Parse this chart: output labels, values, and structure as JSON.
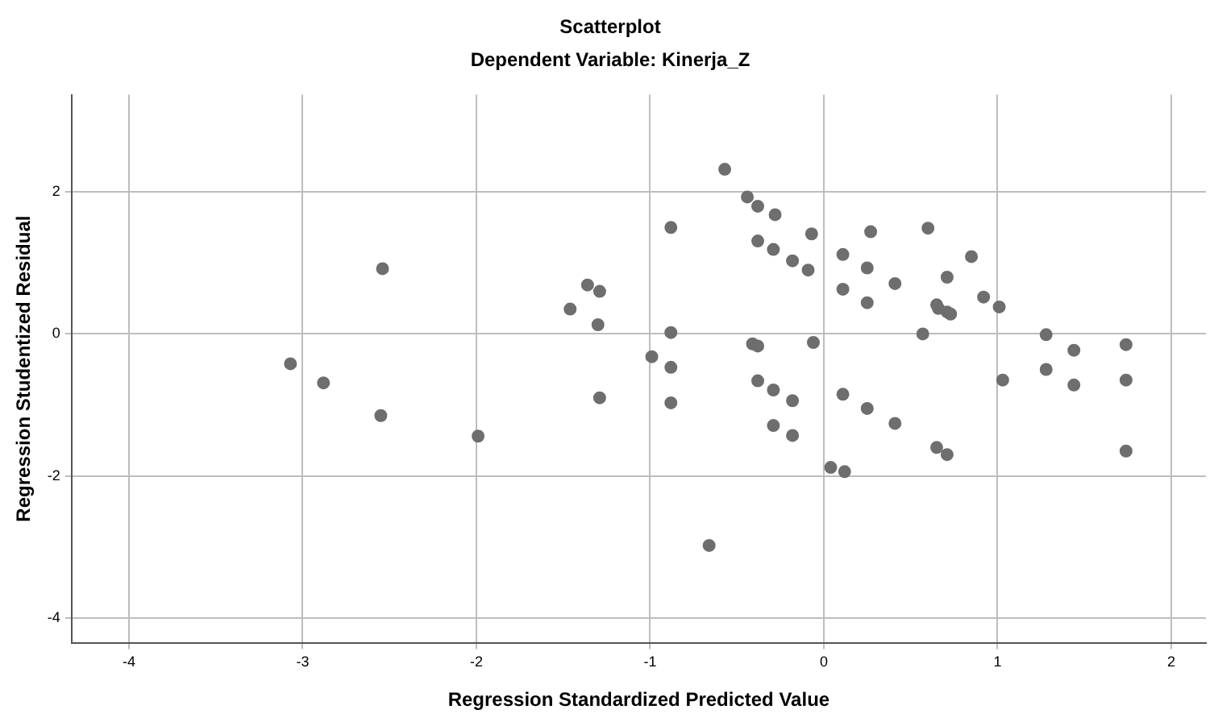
{
  "chart_data": {
    "type": "scatter",
    "title": "Scatterplot",
    "subtitle": "Dependent Variable: Kinerja_Z",
    "xlabel": "Regression Standardized Predicted Value",
    "ylabel": "Regression Studentized Residual",
    "x": [
      -3.07,
      -2.88,
      -2.54,
      -2.55,
      -1.99,
      -1.46,
      -1.36,
      -1.29,
      -1.3,
      -1.29,
      -0.57,
      -0.44,
      -0.38,
      -0.28,
      -0.88,
      -0.07,
      0.27,
      0.6,
      -0.38,
      -0.29,
      -0.18,
      -0.09,
      0.11,
      0.25,
      0.85,
      0.11,
      0.41,
      0.71,
      0.25,
      0.65,
      0.66,
      0.71,
      0.73,
      0.92,
      1.01,
      -0.88,
      0.57,
      1.28,
      -0.41,
      -0.38,
      -0.06,
      -0.99,
      -0.88,
      -0.88,
      1.44,
      1.74,
      1.28,
      1.44,
      1.03,
      1.74,
      1.74,
      -0.38,
      -0.29,
      -0.18,
      0.11,
      0.25,
      0.41,
      -0.29,
      -0.18,
      0.65,
      0.71,
      0.04,
      0.12,
      -0.66
    ],
    "series": [
      {
        "color": "#6e6e6e",
        "values": [
          -0.42,
          -0.69,
          0.92,
          -1.15,
          -1.44,
          0.35,
          0.69,
          0.6,
          0.13,
          -0.9,
          2.32,
          1.93,
          1.8,
          1.68,
          1.5,
          1.41,
          1.44,
          1.49,
          1.31,
          1.19,
          1.03,
          0.9,
          1.12,
          0.93,
          1.09,
          0.63,
          0.71,
          0.8,
          0.44,
          0.41,
          0.36,
          0.31,
          0.28,
          0.52,
          0.38,
          0.02,
          0.0,
          -0.01,
          -0.14,
          -0.17,
          -0.12,
          -0.32,
          -0.47,
          -0.97,
          -0.23,
          -0.15,
          -0.5,
          -0.72,
          -0.65,
          -0.65,
          -1.65,
          -0.66,
          -0.79,
          -0.94,
          -0.85,
          -1.05,
          -1.26,
          -1.29,
          -1.43,
          -1.6,
          -1.7,
          -1.88,
          -1.94,
          -2.98
        ]
      }
    ],
    "xlim": [
      -4.33,
      2.2
    ],
    "ylim": [
      -4.35,
      3.37
    ],
    "xticks": [
      -4,
      -3,
      -2,
      -1,
      0,
      1,
      2
    ],
    "yticks": [
      -4,
      -2,
      0,
      2
    ],
    "grid": true,
    "legend": false,
    "marker": "circle"
  }
}
